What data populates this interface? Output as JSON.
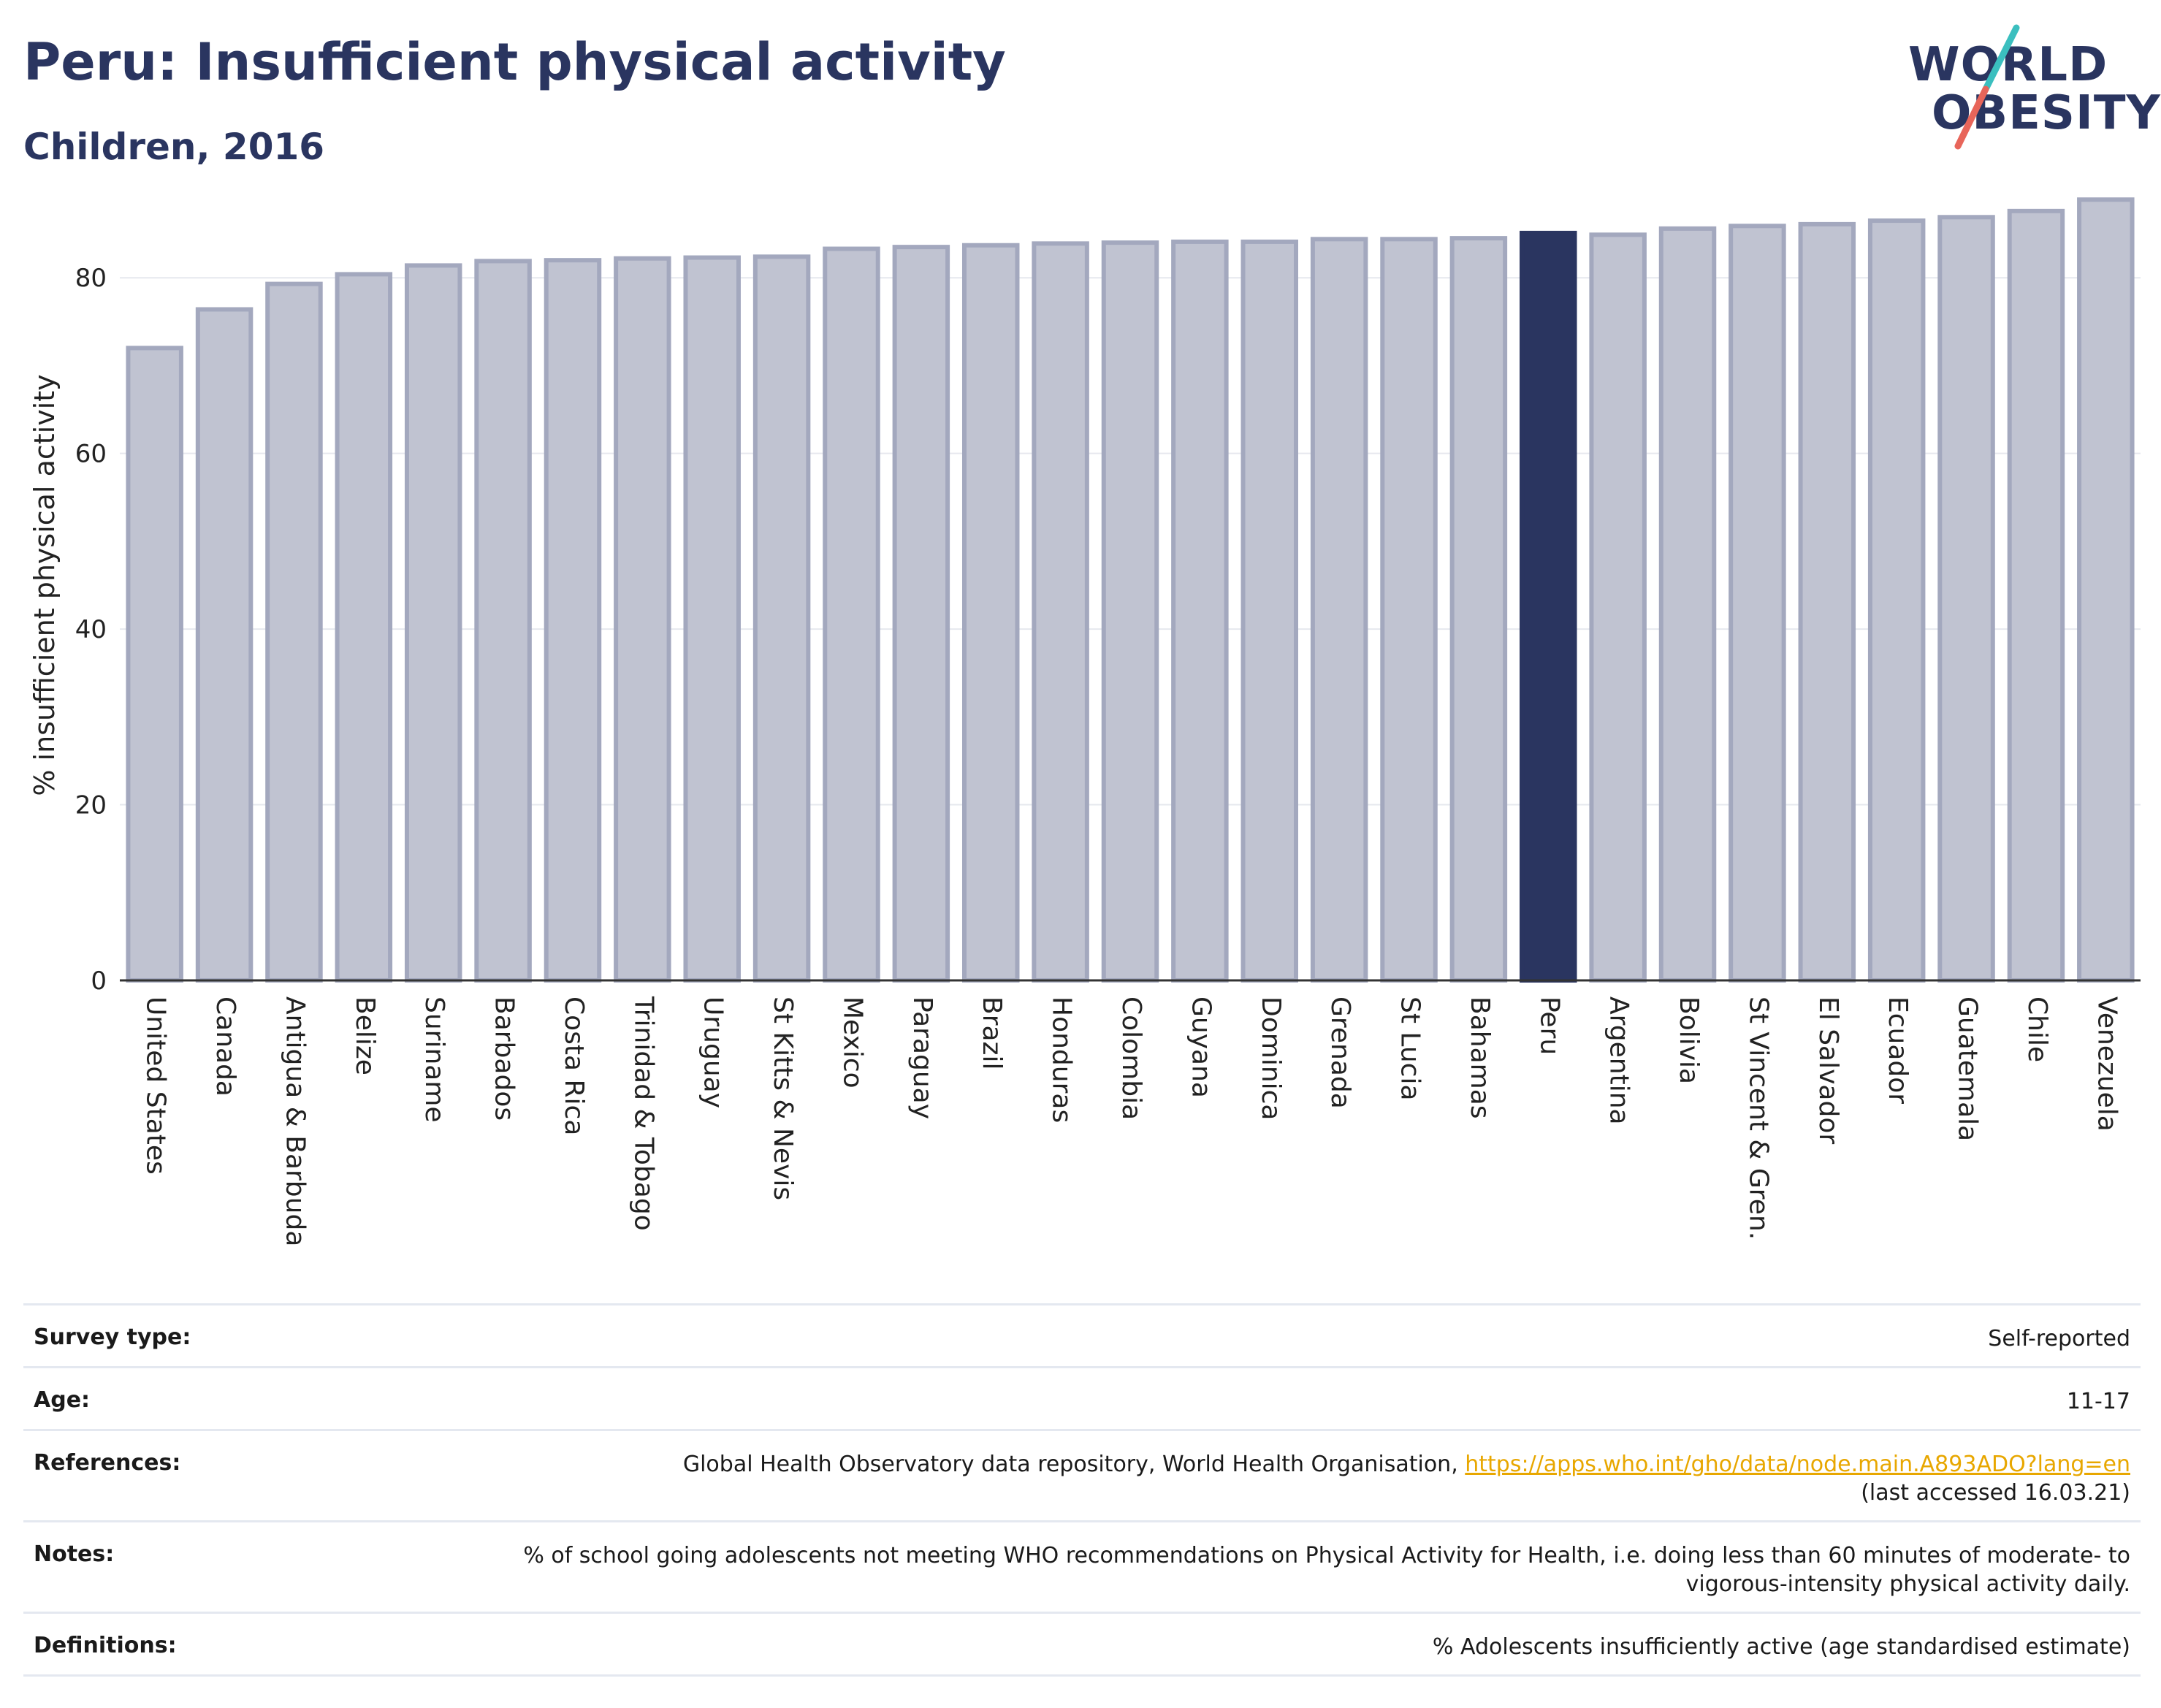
{
  "header": {
    "title": "Peru: Insufficient physical activity",
    "subtitle": "Children, 2016"
  },
  "logo": {
    "line1": "WORLD",
    "line2": "OBESITY"
  },
  "colors": {
    "title": "#2a3560",
    "highlight": "#2a3560",
    "bar_fill": "#c0c3d1",
    "bar_stroke": "#a3a8be",
    "link": "#e8a700",
    "logo_teal": "#3bbfbf",
    "logo_coral": "#e8655a"
  },
  "chart_data": {
    "type": "bar",
    "title": "",
    "ylabel": "% insufficient physical activity",
    "xlabel": "",
    "ylim": [
      0,
      90
    ],
    "yticks": [
      0,
      20,
      40,
      60,
      80
    ],
    "grid": true,
    "highlight": "Peru",
    "categories": [
      "United States",
      "Canada",
      "Antigua & Barbuda",
      "Belize",
      "Suriname",
      "Barbados",
      "Costa Rica",
      "Trinidad & Tobago",
      "Uruguay",
      "St Kitts & Nevis",
      "Mexico",
      "Paraguay",
      "Brazil",
      "Honduras",
      "Colombia",
      "Guyana",
      "Dominica",
      "Grenada",
      "St Lucia",
      "Bahamas",
      "Peru",
      "Argentina",
      "Bolivia",
      "St Vincent & Gren.",
      "El Salvador",
      "Ecuador",
      "Guatemala",
      "Chile",
      "Venezuela"
    ],
    "values": [
      72.0,
      76.4,
      79.3,
      80.4,
      81.4,
      81.9,
      82.0,
      82.2,
      82.3,
      82.4,
      83.3,
      83.5,
      83.7,
      83.9,
      84.0,
      84.1,
      84.1,
      84.4,
      84.4,
      84.5,
      85.1,
      84.9,
      85.6,
      85.9,
      86.1,
      86.5,
      86.9,
      87.6,
      88.9
    ]
  },
  "meta": {
    "survey_type_label": "Survey type:",
    "survey_type_value": "Self-reported",
    "age_label": "Age:",
    "age_value": "11-17",
    "references_label": "References:",
    "references_text": "Global Health Observatory data repository, World Health Organisation, ",
    "references_link": "https://apps.who.int/gho/data/node.main.A893ADO?lang=en",
    "references_accessed": "(last accessed 16.03.21)",
    "notes_label": "Notes:",
    "notes_value": "% of school going adolescents not meeting WHO recommendations on Physical Activity for Health, i.e. doing less than 60 minutes of moderate- to vigorous-intensity physical activity daily.",
    "definitions_label": "Definitions:",
    "definitions_value": "% Adolescents insufficiently active (age standardised estimate)"
  }
}
